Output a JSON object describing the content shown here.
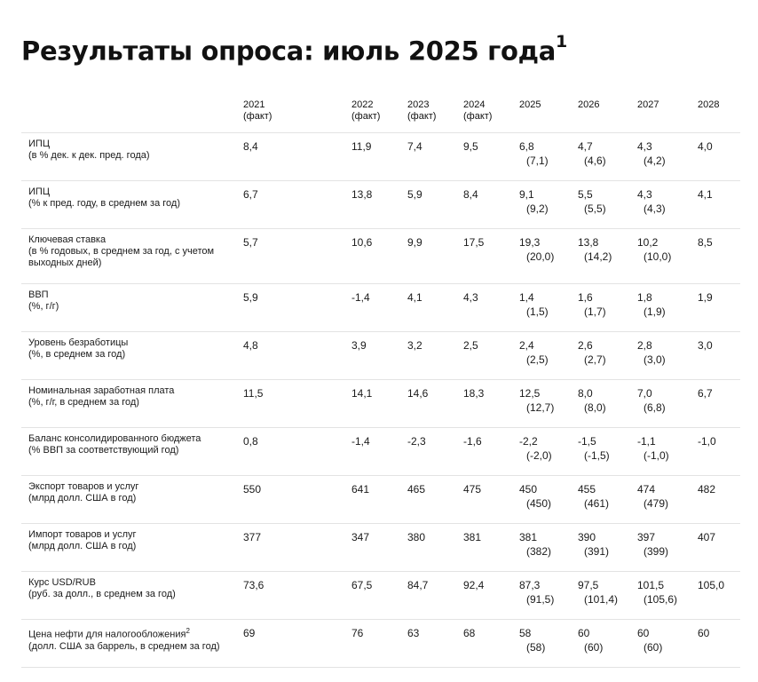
{
  "title": "Результаты опроса: июль 2025 года",
  "title_sup": "1",
  "years": [
    {
      "year": "2021",
      "note": "(факт)"
    },
    {
      "year": "2022",
      "note": "(факт)"
    },
    {
      "year": "2023",
      "note": "(факт)"
    },
    {
      "year": "2024",
      "note": "(факт)"
    },
    {
      "year": "2025",
      "note": ""
    },
    {
      "year": "2026",
      "note": ""
    },
    {
      "year": "2027",
      "note": ""
    },
    {
      "year": "2028",
      "note": ""
    }
  ],
  "rows": [
    {
      "name": "ИПЦ",
      "sub": "(в % дек. к дек. пред. года)",
      "sup": "",
      "values": [
        "8,4",
        "11,9",
        "7,4",
        "9,5",
        "6,8",
        "4,7",
        "4,3",
        "4,0"
      ],
      "prev": [
        "(7,1)",
        "(4,6)",
        "(4,2)"
      ]
    },
    {
      "name": "ИПЦ",
      "sub": "(% к пред. году, в среднем за год)",
      "sup": "",
      "values": [
        "6,7",
        "13,8",
        "5,9",
        "8,4",
        "9,1",
        "5,5",
        "4,3",
        "4,1"
      ],
      "prev": [
        "(9,2)",
        "(5,5)",
        "(4,3)"
      ]
    },
    {
      "name": "Ключевая ставка",
      "sub": "(в % годовых, в среднем за год, с учетом выходных дней)",
      "sup": "",
      "values": [
        "5,7",
        "10,6",
        "9,9",
        "17,5",
        "19,3",
        "13,8",
        "10,2",
        "8,5"
      ],
      "prev": [
        "(20,0)",
        "(14,2)",
        "(10,0)"
      ]
    },
    {
      "name": "ВВП",
      "sub": "(%, г/г)",
      "sup": "",
      "values": [
        "5,9",
        "-1,4",
        "4,1",
        "4,3",
        "1,4",
        "1,6",
        "1,8",
        "1,9"
      ],
      "prev": [
        "(1,5)",
        "(1,7)",
        "(1,9)"
      ]
    },
    {
      "name": "Уровень безработицы",
      "sub": "(%, в среднем за год)",
      "sup": "",
      "values": [
        "4,8",
        "3,9",
        "3,2",
        "2,5",
        "2,4",
        "2,6",
        "2,8",
        "3,0"
      ],
      "prev": [
        "(2,5)",
        "(2,7)",
        "(3,0)"
      ]
    },
    {
      "name": "Номинальная заработная плата",
      "sub": "(%, г/г, в среднем за год)",
      "sup": "",
      "values": [
        "11,5",
        "14,1",
        "14,6",
        "18,3",
        "12,5",
        "8,0",
        "7,0",
        "6,7"
      ],
      "prev": [
        "(12,7)",
        "(8,0)",
        "(6,8)"
      ]
    },
    {
      "name": "Баланс консолидированного бюджета",
      "sub": "(% ВВП за соответствующий год)",
      "sup": "",
      "values": [
        "0,8",
        "-1,4",
        "-2,3",
        "-1,6",
        "-2,2",
        "-1,5",
        "-1,1",
        "-1,0"
      ],
      "prev": [
        "(-2,0)",
        "(-1,5)",
        "(-1,0)"
      ]
    },
    {
      "name": "Экспорт товаров и услуг",
      "sub": "(млрд долл. США в год)",
      "sup": "",
      "values": [
        "550",
        "641",
        "465",
        "475",
        "450",
        "455",
        "474",
        "482"
      ],
      "prev": [
        "(450)",
        "(461)",
        "(479)"
      ]
    },
    {
      "name": "Импорт товаров и услуг",
      "sub": "(млрд долл. США в год)",
      "sup": "",
      "values": [
        "377",
        "347",
        "380",
        "381",
        "381",
        "390",
        "397",
        "407"
      ],
      "prev": [
        "(382)",
        "(391)",
        "(399)"
      ]
    },
    {
      "name": "Курс USD/RUB",
      "sub": "(руб. за долл., в среднем за год)",
      "sup": "",
      "values": [
        "73,6",
        "67,5",
        "84,7",
        "92,4",
        "87,3",
        "97,5",
        "101,5",
        "105,0"
      ],
      "prev": [
        "(91,5)",
        "(101,4)",
        "(105,6)"
      ]
    },
    {
      "name": "Цена нефти для налогообложения",
      "sub": "(долл. США за баррель, в среднем за год)",
      "sup": "2",
      "values": [
        "69",
        "76",
        "63",
        "68",
        "58",
        "60",
        "60",
        "60"
      ],
      "prev": [
        "(58)",
        "(60)",
        "(60)"
      ]
    }
  ]
}
